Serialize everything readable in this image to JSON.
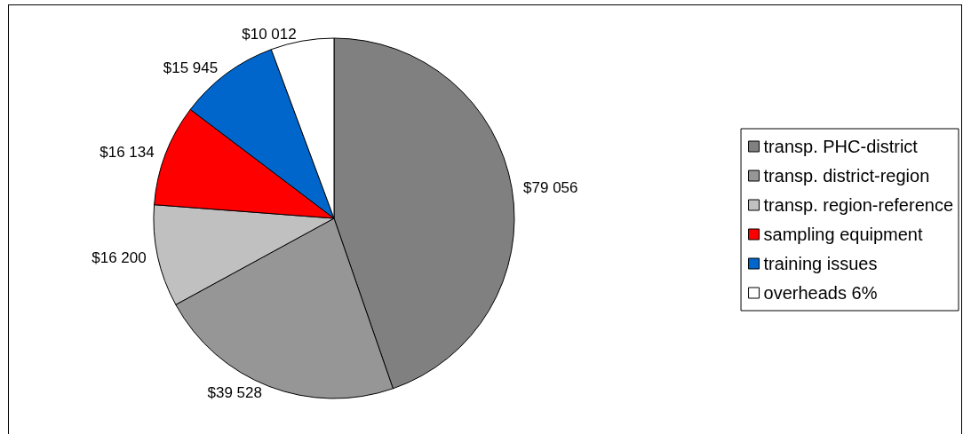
{
  "chart_data": {
    "type": "pie",
    "categories": [
      "transp. PHC-district",
      "transp. district-region",
      "transp. region-reference",
      "sampling equipment",
      "training issues",
      "overheads 6%"
    ],
    "values": [
      79056,
      39528,
      16200,
      16134,
      15945,
      10012
    ],
    "value_labels": [
      "$79 056",
      "$39 528",
      "$16 200",
      "$16 134",
      "$15 945",
      "$10 012"
    ],
    "colors": [
      "#808080",
      "#969696",
      "#c0c0c0",
      "#ff0000",
      "#0066cc",
      "#ffffff"
    ],
    "legend": "right"
  }
}
